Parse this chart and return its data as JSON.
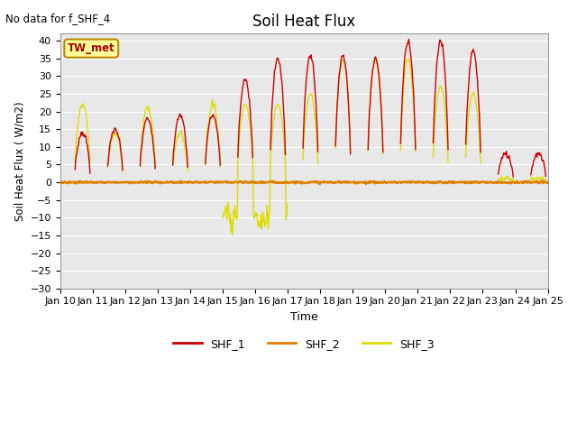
{
  "title": "Soil Heat Flux",
  "note": "No data for f_SHF_4",
  "xlabel": "Time",
  "ylabel": "Soil Heat Flux ( W/m2)",
  "ylim": [
    -30,
    42
  ],
  "yticks": [
    -30,
    -25,
    -20,
    -15,
    -10,
    -5,
    0,
    5,
    10,
    15,
    20,
    25,
    30,
    35,
    40
  ],
  "n_days": 15,
  "x_tick_labels": [
    "Jan 10",
    "Jan 11",
    "Jan 12",
    "Jan 13",
    "Jan 14",
    "Jan 15",
    "Jan 16",
    "Jan 17",
    "Jan 18",
    "Jan 19",
    "Jan 20",
    "Jan 21",
    "Jan 22",
    "Jan 23",
    "Jan 24",
    "Jan 25"
  ],
  "color_shf1": "#CC0000",
  "color_shf2": "#E08000",
  "color_shf3": "#DDDD00",
  "legend_label1": "SHF_1",
  "legend_label2": "SHF_2",
  "legend_label3": "SHF_3",
  "bg_color": "#E8E8E8",
  "box_label": "TW_met",
  "box_facecolor": "#FFFF99",
  "box_edgecolor": "#BB8800"
}
